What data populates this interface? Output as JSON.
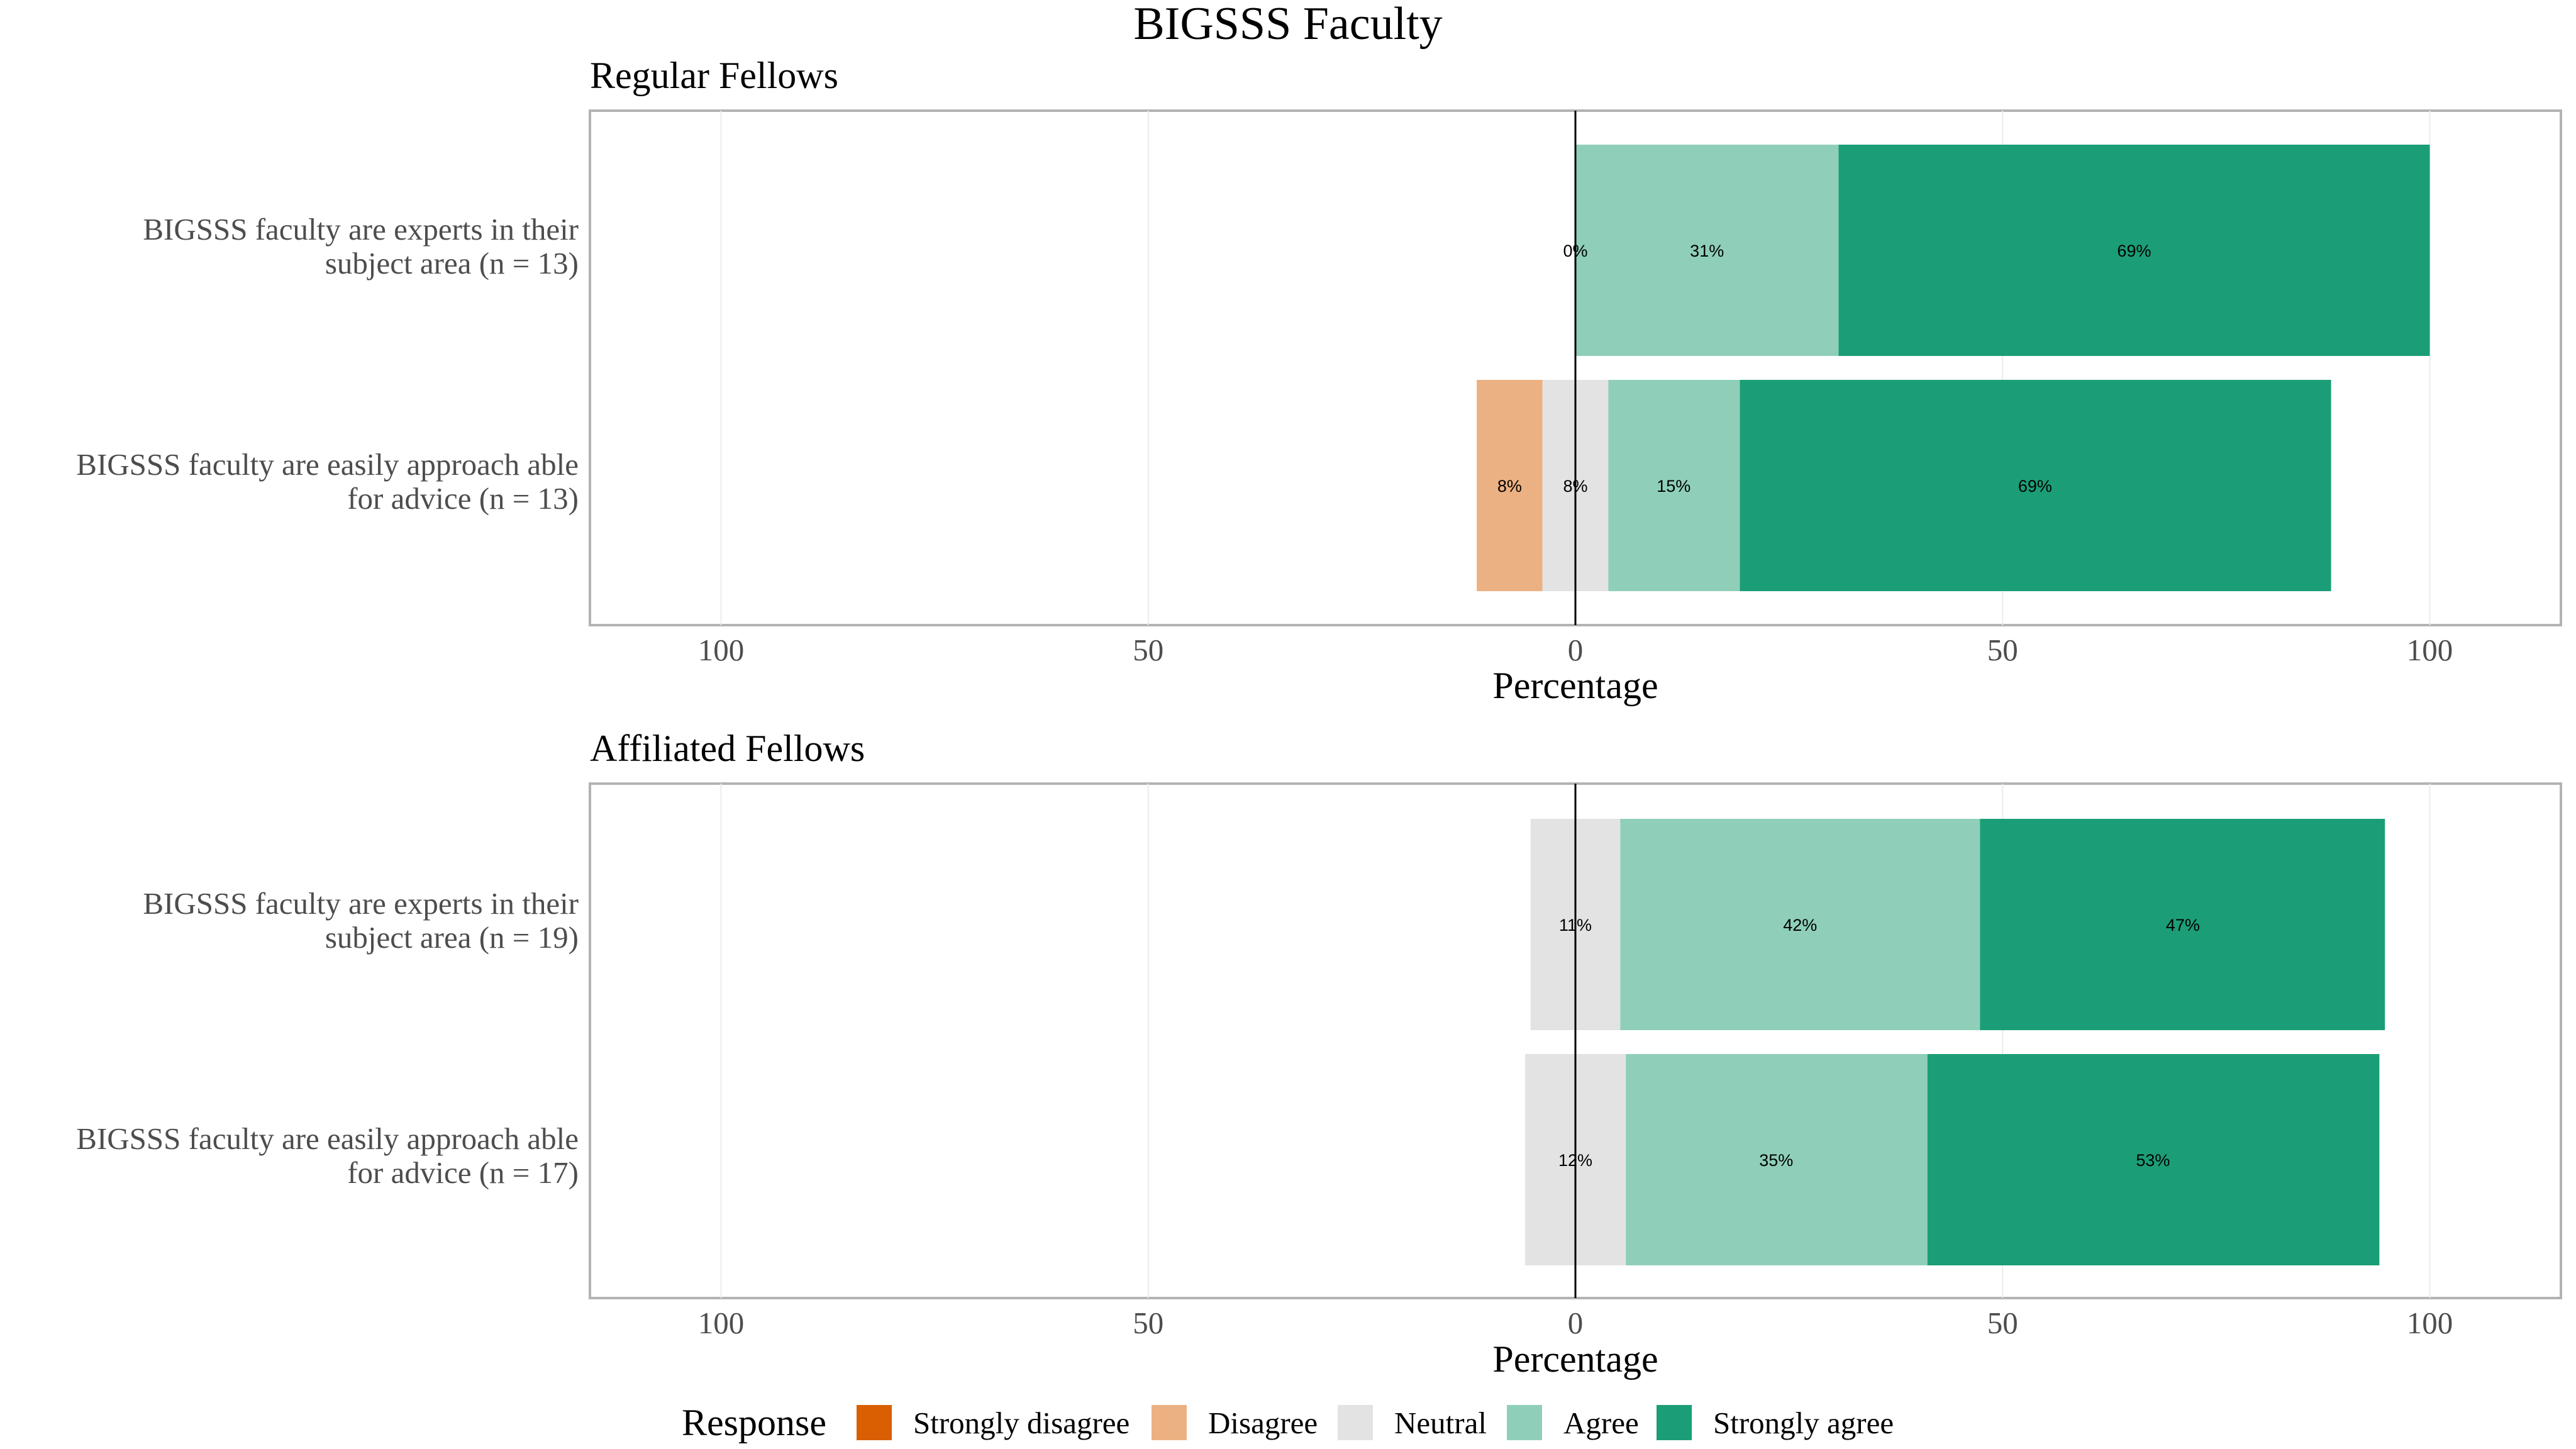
{
  "title": "BIGSSS Faculty",
  "x_axis_label": "Percentage",
  "x_ticks": [
    -100,
    -50,
    0,
    50,
    100
  ],
  "x_tick_labels": [
    "100",
    "50",
    "0",
    "50",
    "100"
  ],
  "legend": {
    "title": "Response",
    "items": [
      {
        "label": "Strongly disagree",
        "color": "#d95f02"
      },
      {
        "label": "Disagree",
        "color": "#ecb182"
      },
      {
        "label": "Neutral",
        "color": "#e3e3e3"
      },
      {
        "label": "Agree",
        "color": "#8fcfb9"
      },
      {
        "label": "Strongly agree",
        "color": "#1b9e77"
      }
    ]
  },
  "chart_data": [
    {
      "type": "bar",
      "orientation": "horizontal-diverging",
      "title": "Regular Fellows",
      "xlabel": "Percentage",
      "xlim": [
        -100,
        100
      ],
      "categories": [
        {
          "line1": "BIGSSS faculty are experts in their",
          "line2": "subject area (n = 13)"
        },
        {
          "line1": "BIGSSS faculty are easily approach able",
          "line2": "for advice (n = 13)"
        }
      ],
      "series": [
        {
          "name": "Strongly disagree",
          "values": [
            0,
            0
          ]
        },
        {
          "name": "Disagree",
          "values": [
            0,
            7.7
          ]
        },
        {
          "name": "Neutral",
          "values": [
            0,
            7.7
          ]
        },
        {
          "name": "Agree",
          "values": [
            30.8,
            15.4
          ]
        },
        {
          "name": "Strongly agree",
          "values": [
            69.2,
            69.2
          ]
        }
      ],
      "labels": [
        {
          "row": 0,
          "items": [
            {
              "text": "0%",
              "x": 0
            },
            {
              "text": "31%",
              "x": 15.4
            },
            {
              "text": "69%",
              "x": 65.4
            }
          ]
        },
        {
          "row": 1,
          "items": [
            {
              "text": "8%",
              "x": -7.7
            },
            {
              "text": "8%",
              "x": 0
            },
            {
              "text": "15%",
              "x": 11.5
            },
            {
              "text": "69%",
              "x": 53.8
            }
          ]
        }
      ]
    },
    {
      "type": "bar",
      "orientation": "horizontal-diverging",
      "title": "Affiliated Fellows",
      "xlabel": "Percentage",
      "xlim": [
        -100,
        100
      ],
      "categories": [
        {
          "line1": "BIGSSS faculty are experts in their",
          "line2": "subject area (n = 19)"
        },
        {
          "line1": "BIGSSS faculty are easily approach able",
          "line2": "for advice (n = 17)"
        }
      ],
      "series": [
        {
          "name": "Strongly disagree",
          "values": [
            0,
            0
          ]
        },
        {
          "name": "Disagree",
          "values": [
            0,
            0
          ]
        },
        {
          "name": "Neutral",
          "values": [
            10.5,
            11.8
          ]
        },
        {
          "name": "Agree",
          "values": [
            42.1,
            35.3
          ]
        },
        {
          "name": "Strongly agree",
          "values": [
            47.4,
            52.9
          ]
        }
      ],
      "labels": [
        {
          "row": 0,
          "items": [
            {
              "text": "11%",
              "x": 0
            },
            {
              "text": "42%",
              "x": 26.3
            },
            {
              "text": "47%",
              "x": 71.1
            }
          ]
        },
        {
          "row": 1,
          "items": [
            {
              "text": "12%",
              "x": 0
            },
            {
              "text": "35%",
              "x": 23.5
            },
            {
              "text": "53%",
              "x": 67.6
            }
          ]
        }
      ]
    }
  ]
}
